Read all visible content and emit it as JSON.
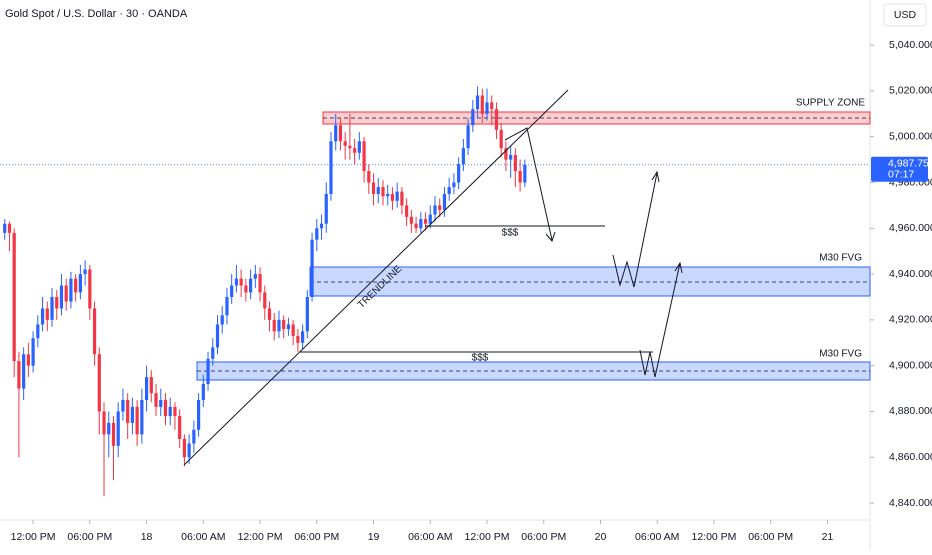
{
  "chart_data": {
    "type": "candlestick",
    "title": "Gold Spot / U.S. Dollar · 30 · OANDA",
    "currency": "USD",
    "up_color": "#2962ff",
    "down_color": "#f23645",
    "grid": false,
    "xlim": [
      0,
      184
    ],
    "ylim": [
      4832.6,
      5059.7
    ],
    "xticks": [
      {
        "value": 7,
        "label": "12:00 PM"
      },
      {
        "value": 19,
        "label": "06:00 PM"
      },
      {
        "value": 31,
        "label": "18"
      },
      {
        "value": 43,
        "label": "06:00 AM"
      },
      {
        "value": 55,
        "label": "12:00 PM"
      },
      {
        "value": 67,
        "label": "06:00 PM"
      },
      {
        "value": 79,
        "label": "19"
      },
      {
        "value": 91,
        "label": "06:00 AM"
      },
      {
        "value": 103,
        "label": "12:00 PM"
      },
      {
        "value": 115,
        "label": "06:00 PM"
      },
      {
        "value": 127,
        "label": "20"
      },
      {
        "value": 139,
        "label": "06:00 AM"
      },
      {
        "value": 151,
        "label": "12:00 PM"
      },
      {
        "value": 163,
        "label": "06:00 PM"
      },
      {
        "value": 175,
        "label": "21"
      }
    ],
    "yticks": [
      {
        "value": 4840,
        "label": "4,840.000"
      },
      {
        "value": 4860,
        "label": "4,860.000"
      },
      {
        "value": 4880,
        "label": "4,880.000"
      },
      {
        "value": 4900,
        "label": "4,900.000"
      },
      {
        "value": 4920,
        "label": "4,920.000"
      },
      {
        "value": 4940,
        "label": "4,940.000"
      },
      {
        "value": 4960,
        "label": "4,960.000"
      },
      {
        "value": 4980,
        "label": "4,980.000"
      },
      {
        "value": 5000,
        "label": "5,000.000"
      },
      {
        "value": 5020,
        "label": "5,020.000"
      },
      {
        "value": 5040,
        "label": "5,040.000"
      }
    ],
    "last_price": 4987.75,
    "last_price_label": "4,987.750",
    "countdown": "07:17",
    "annotations": {
      "supply": "SUPPLY ZONE",
      "fvg_upper": "M30 FVG",
      "fvg_lower": "M30 FVG",
      "trendline": "TRENDLINE",
      "liquidity_upper": "$$$",
      "liquidity_lower": "$$$"
    },
    "x": [
      1,
      2,
      3,
      4,
      5,
      6,
      7,
      8,
      9,
      10,
      11,
      12,
      13,
      14,
      15,
      16,
      17,
      18,
      19,
      20,
      21,
      22,
      23,
      24,
      25,
      26,
      27,
      28,
      29,
      30,
      31,
      32,
      33,
      34,
      35,
      36,
      37,
      38,
      39,
      40,
      41,
      42,
      43,
      44,
      45,
      46,
      47,
      48,
      49,
      50,
      51,
      52,
      53,
      54,
      55,
      56,
      57,
      58,
      59,
      60,
      61,
      62,
      63,
      64,
      65,
      66,
      67,
      68,
      69,
      70,
      71,
      72,
      73,
      74,
      75,
      76,
      77,
      78,
      79,
      80,
      81,
      82,
      83,
      84,
      85,
      86,
      87,
      88,
      89,
      90,
      91,
      92,
      93,
      94,
      95,
      96,
      97,
      98,
      99,
      100,
      101,
      102,
      103,
      104,
      105,
      106,
      107,
      108,
      109,
      110,
      111
    ],
    "open": [
      4958,
      4962,
      4958,
      4902,
      4890,
      4905,
      4900,
      4912,
      4918,
      4925,
      4920,
      4930,
      4925,
      4935,
      4928,
      4938,
      4932,
      4940,
      4942,
      4925,
      4905,
      4880,
      4870,
      4875,
      4865,
      4880,
      4885,
      4875,
      4882,
      4870,
      4885,
      4895,
      4888,
      4882,
      4885,
      4878,
      4882,
      4878,
      4868,
      4860,
      4866,
      4872,
      4885,
      4892,
      4903,
      4908,
      4918,
      4922,
      4930,
      4935,
      4938,
      4935,
      4932,
      4938,
      4940,
      4932,
      4925,
      4920,
      4915,
      4920,
      4916,
      4918,
      4913,
      4910,
      4915,
      4930,
      4955,
      4960,
      4962,
      4975,
      4998,
      5005,
      4998,
      4996,
      4995,
      4993,
      4998,
      4985,
      4980,
      4975,
      4978,
      4974,
      4975,
      4972,
      4976,
      4970,
      4965,
      4962,
      4960,
      4964,
      4962,
      4966,
      4970,
      4968,
      4975,
      4978,
      4980,
      4988,
      4995,
      5005,
      5012,
      5018,
      5010,
      5015,
      5012,
      5003,
      4995,
      4990,
      4992,
      4985,
      4980
    ],
    "high": [
      4964,
      4963,
      4960,
      4906,
      4908,
      4910,
      4915,
      4922,
      4930,
      4928,
      4934,
      4933,
      4940,
      4938,
      4941,
      4940,
      4944,
      4946,
      4944,
      4928,
      4908,
      4884,
      4880,
      4878,
      4884,
      4890,
      4888,
      4886,
      4885,
      4890,
      4900,
      4898,
      4892,
      4890,
      4888,
      4886,
      4884,
      4881,
      4870,
      4870,
      4876,
      4888,
      4896,
      4906,
      4912,
      4922,
      4926,
      4934,
      4940,
      4944,
      4942,
      4938,
      4942,
      4944,
      4943,
      4935,
      4928,
      4923,
      4924,
      4922,
      4921,
      4920,
      4916,
      4918,
      4933,
      4958,
      4964,
      4966,
      4980,
      5002,
      5010,
      5008,
      5002,
      5010,
      4999,
      5002,
      5000,
      4988,
      4984,
      4982,
      4981,
      4979,
      4978,
      4980,
      4978,
      4973,
      4968,
      4965,
      4967,
      4967,
      4970,
      4974,
      4973,
      4978,
      4982,
      4984,
      4991,
      4999,
      5008,
      5016,
      5022,
      5021,
      5021,
      5018,
      5015,
      5006,
      4998,
      4996,
      4995,
      4990,
      4990
    ],
    "low": [
      4955,
      4950,
      4895,
      4860,
      4885,
      4895,
      4897,
      4908,
      4915,
      4915,
      4917,
      4920,
      4922,
      4924,
      4925,
      4928,
      4929,
      4935,
      4920,
      4900,
      4870,
      4843,
      4860,
      4850,
      4860,
      4876,
      4868,
      4870,
      4865,
      4866,
      4880,
      4884,
      4878,
      4878,
      4874,
      4874,
      4872,
      4864,
      4856,
      4857,
      4862,
      4869,
      4882,
      4889,
      4900,
      4905,
      4914,
      4918,
      4927,
      4932,
      4930,
      4928,
      4929,
      4934,
      4928,
      4920,
      4915,
      4911,
      4912,
      4912,
      4913,
      4909,
      4906,
      4907,
      4912,
      4928,
      4950,
      4955,
      4958,
      4972,
      4994,
      4994,
      4990,
      4990,
      4988,
      4990,
      4980,
      4975,
      4970,
      4971,
      4970,
      4970,
      4968,
      4969,
      4966,
      4961,
      4958,
      4958,
      4958,
      4959,
      4960,
      4963,
      4965,
      4965,
      4972,
      4975,
      4977,
      4985,
      4992,
      5002,
      5008,
      5006,
      5007,
      5005,
      4999,
      4991,
      4985,
      4982,
      4978,
      4976,
      4978
    ],
    "close": [
      4962,
      4958,
      4902,
      4890,
      4905,
      4900,
      4912,
      4918,
      4925,
      4920,
      4930,
      4925,
      4935,
      4928,
      4938,
      4932,
      4940,
      4942,
      4925,
      4905,
      4880,
      4870,
      4875,
      4865,
      4880,
      4885,
      4875,
      4882,
      4870,
      4885,
      4895,
      4888,
      4882,
      4885,
      4878,
      4882,
      4878,
      4868,
      4860,
      4866,
      4872,
      4885,
      4892,
      4903,
      4908,
      4918,
      4922,
      4930,
      4935,
      4938,
      4935,
      4932,
      4938,
      4940,
      4932,
      4925,
      4920,
      4915,
      4920,
      4916,
      4918,
      4913,
      4910,
      4915,
      4930,
      4955,
      4960,
      4962,
      4975,
      4998,
      5005,
      4998,
      4996,
      4995,
      4993,
      4998,
      4985,
      4980,
      4975,
      4978,
      4974,
      4975,
      4972,
      4976,
      4970,
      4965,
      4962,
      4960,
      4964,
      4962,
      4966,
      4970,
      4968,
      4975,
      4978,
      4980,
      4988,
      4995,
      5005,
      5012,
      5018,
      5010,
      5015,
      5012,
      5003,
      4995,
      4990,
      4992,
      4985,
      4980,
      4987.75
    ]
  }
}
